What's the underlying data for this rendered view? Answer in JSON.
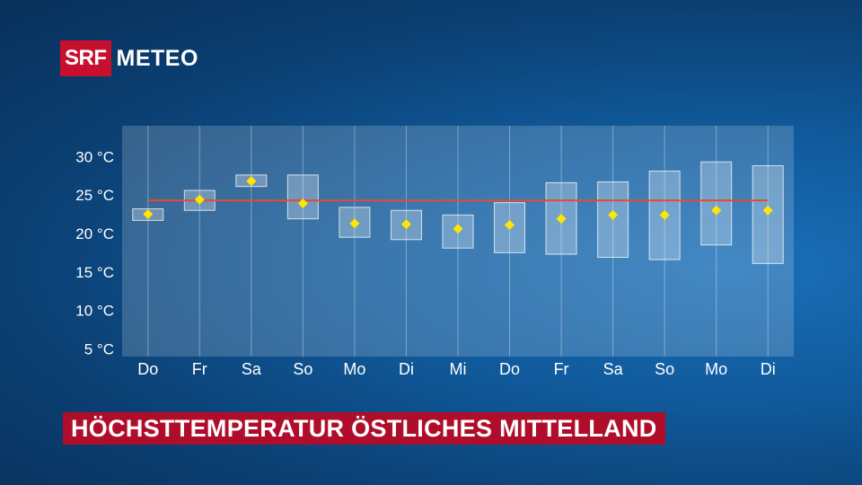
{
  "logo": {
    "brand": "SRF",
    "product": "METEO"
  },
  "title": "HÖCHSTTEMPERATUR ÖSTLICHES MITTELLAND",
  "colors": {
    "brand_red": "#c8102e",
    "plot_area": "#ffffff",
    "box_fill": "#ffffff",
    "median_marker": "#ffe600",
    "reference_line": "#e84a2f"
  },
  "chart_data": {
    "type": "box",
    "categories": [
      "Do",
      "Fr",
      "Sa",
      "So",
      "Mo",
      "Di",
      "Mi",
      "Do",
      "Fr",
      "Sa",
      "So",
      "Mo",
      "Di"
    ],
    "y_unit": "°C",
    "y_ticks": [
      "5 °C",
      "10 °C",
      "15 °C",
      "20 °C",
      "25 °C",
      "30 °C"
    ],
    "y_tick_values": [
      5,
      10,
      15,
      20,
      25,
      30
    ],
    "ylim": [
      4,
      34
    ],
    "grid": true,
    "series": [
      {
        "low": [
          21.7,
          23.0,
          26.1,
          21.9,
          19.5,
          19.2,
          18.1,
          17.5,
          17.3,
          16.9,
          16.6,
          18.5,
          16.1
        ],
        "high": [
          23.2,
          25.6,
          27.6,
          27.6,
          23.4,
          23.0,
          22.4,
          24.0,
          26.6,
          26.7,
          28.1,
          29.3,
          28.8
        ],
        "median": [
          22.5,
          24.4,
          26.8,
          23.9,
          21.3,
          21.2,
          20.6,
          21.1,
          21.9,
          22.4,
          22.4,
          23.0,
          23.0
        ]
      }
    ],
    "reference_line": 24.3
  }
}
